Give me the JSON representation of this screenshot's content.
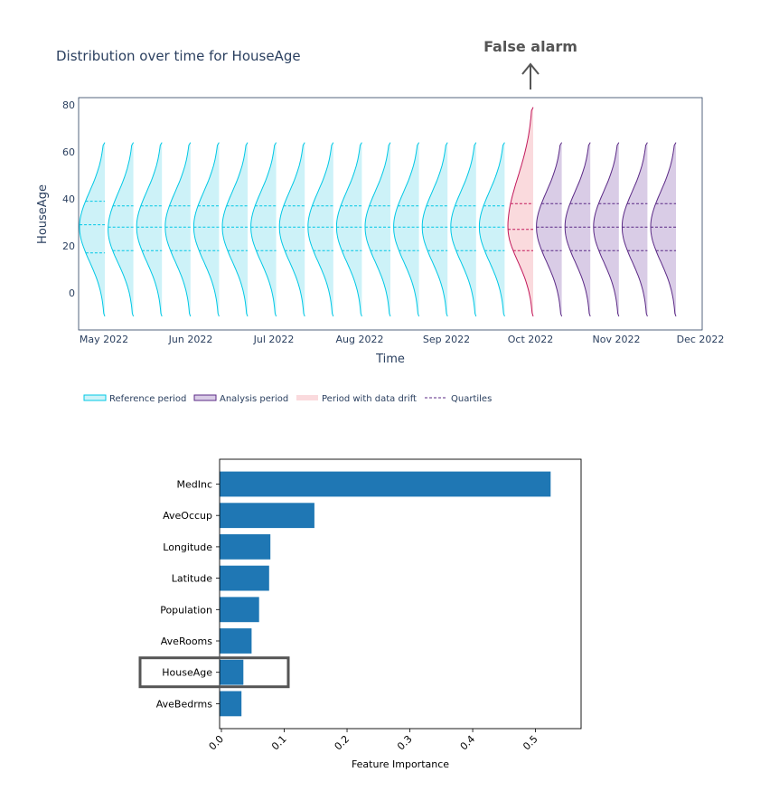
{
  "annotation": {
    "label": "False alarm",
    "arrow": "↑"
  },
  "chart_data": [
    {
      "type": "violin",
      "title": "Distribution over time for HouseAge",
      "xlabel": "Time",
      "ylabel": "HouseAge",
      "ylim": [
        -12,
        82
      ],
      "yticks": [
        0,
        20,
        40,
        60,
        80
      ],
      "xticks": [
        "May 2022",
        "Jun 2022",
        "Jul 2022",
        "Aug 2022",
        "Sep 2022",
        "Oct 2022",
        "Nov 2022",
        "Dec 2022"
      ],
      "legend": [
        {
          "label": "Reference period",
          "color": "#00c8e5"
        },
        {
          "label": "Analysis period",
          "color": "#3b0280"
        },
        {
          "label": "Period with data drift",
          "color": "#ffc0cb"
        },
        {
          "label": "Quartiles",
          "color": "#3b0280"
        }
      ],
      "colors": {
        "reference_line": "#00c8e5",
        "reference_fill": "#cdf2f8",
        "analysis_line": "#5b2a86",
        "analysis_fill": "#d9cce6",
        "drift_line": "#c2185b",
        "drift_fill": "#fadadd"
      },
      "periods": [
        {
          "period": 1,
          "group": "reference",
          "min": -10,
          "max": 64,
          "q1": 17,
          "median": 29,
          "q3": 39,
          "peak": 28
        },
        {
          "period": 2,
          "group": "reference",
          "min": -10,
          "max": 64,
          "q1": 18,
          "median": 28,
          "q3": 37,
          "peak": 27
        },
        {
          "period": 3,
          "group": "reference",
          "min": -10,
          "max": 64,
          "q1": 18,
          "median": 28,
          "q3": 37,
          "peak": 28
        },
        {
          "period": 4,
          "group": "reference",
          "min": -10,
          "max": 64,
          "q1": 18,
          "median": 28,
          "q3": 37,
          "peak": 28
        },
        {
          "period": 5,
          "group": "reference",
          "min": -10,
          "max": 64,
          "q1": 18,
          "median": 28,
          "q3": 37,
          "peak": 28
        },
        {
          "period": 6,
          "group": "reference",
          "min": -10,
          "max": 64,
          "q1": 18,
          "median": 28,
          "q3": 37,
          "peak": 28
        },
        {
          "period": 7,
          "group": "reference",
          "min": -10,
          "max": 64,
          "q1": 18,
          "median": 28,
          "q3": 37,
          "peak": 28
        },
        {
          "period": 8,
          "group": "reference",
          "min": -10,
          "max": 64,
          "q1": 18,
          "median": 28,
          "q3": 37,
          "peak": 28
        },
        {
          "period": 9,
          "group": "reference",
          "min": -10,
          "max": 64,
          "q1": 18,
          "median": 28,
          "q3": 37,
          "peak": 28
        },
        {
          "period": 10,
          "group": "reference",
          "min": -10,
          "max": 64,
          "q1": 18,
          "median": 28,
          "q3": 37,
          "peak": 28
        },
        {
          "period": 11,
          "group": "reference",
          "min": -10,
          "max": 64,
          "q1": 18,
          "median": 28,
          "q3": 37,
          "peak": 28
        },
        {
          "period": 12,
          "group": "reference",
          "min": -10,
          "max": 64,
          "q1": 18,
          "median": 28,
          "q3": 37,
          "peak": 28
        },
        {
          "period": 13,
          "group": "reference",
          "min": -10,
          "max": 64,
          "q1": 18,
          "median": 28,
          "q3": 37,
          "peak": 28
        },
        {
          "period": 14,
          "group": "reference",
          "min": -10,
          "max": 64,
          "q1": 18,
          "median": 28,
          "q3": 37,
          "peak": 28
        },
        {
          "period": 15,
          "group": "reference",
          "min": -10,
          "max": 64,
          "q1": 18,
          "median": 28,
          "q3": 37,
          "peak": 28
        },
        {
          "period": 16,
          "group": "drift",
          "min": -10,
          "max": 79,
          "q1": 18,
          "median": 27,
          "q3": 38,
          "peak": 28
        },
        {
          "period": 17,
          "group": "analysis",
          "min": -10,
          "max": 64,
          "q1": 18,
          "median": 28,
          "q3": 38,
          "peak": 28
        },
        {
          "period": 18,
          "group": "analysis",
          "min": -10,
          "max": 64,
          "q1": 18,
          "median": 28,
          "q3": 38,
          "peak": 28
        },
        {
          "period": 19,
          "group": "analysis",
          "min": -10,
          "max": 64,
          "q1": 18,
          "median": 28,
          "q3": 38,
          "peak": 28
        },
        {
          "period": 20,
          "group": "analysis",
          "min": -10,
          "max": 64,
          "q1": 18,
          "median": 28,
          "q3": 38,
          "peak": 28
        },
        {
          "period": 21,
          "group": "analysis",
          "min": -10,
          "max": 64,
          "q1": 18,
          "median": 28,
          "q3": 38,
          "peak": 28
        }
      ]
    },
    {
      "type": "bar",
      "orientation": "horizontal",
      "xlabel": "Feature Importance",
      "ylabel": "",
      "xlim": [
        0,
        0.55
      ],
      "xticks": [
        "0.0",
        "0.1",
        "0.2",
        "0.3",
        "0.4",
        "0.5"
      ],
      "categories": [
        "MedInc",
        "AveOccup",
        "Longitude",
        "Latitude",
        "Population",
        "AveRooms",
        "HouseAge",
        "AveBedrms"
      ],
      "values": [
        0.524,
        0.148,
        0.078,
        0.076,
        0.06,
        0.048,
        0.035,
        0.032
      ],
      "highlighted": "HouseAge",
      "bar_color": "#1f77b4"
    }
  ]
}
